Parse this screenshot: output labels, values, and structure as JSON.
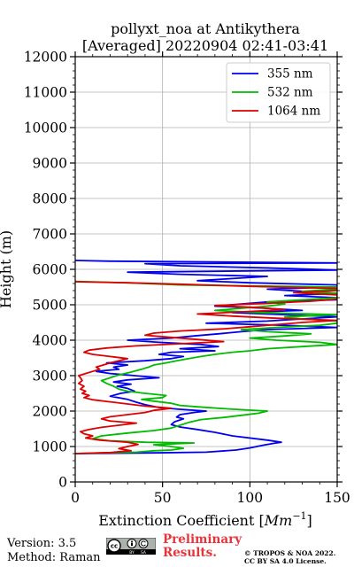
{
  "chart_data": {
    "type": "line",
    "title": "pollyxt_noa at Antikythera",
    "subtitle": "[Averaged] 20220904 02:41-03:41",
    "xlabel": "Extinction Coefficient",
    "xlabel_unit": "Mm",
    "xlabel_unit_exp": "−1",
    "ylabel": "Height (m)",
    "xlim": [
      0,
      150
    ],
    "ylim": [
      0,
      12000
    ],
    "xticks": [
      0,
      50,
      100,
      150
    ],
    "yticks": [
      0,
      1000,
      2000,
      3000,
      4000,
      5000,
      6000,
      7000,
      8000,
      9000,
      10000,
      11000,
      12000
    ],
    "grid": true,
    "legend_position": "top-right",
    "series": [
      {
        "name": "355 nm",
        "color": "#0000ee",
        "points": [
          [
            0,
            800
          ],
          [
            45,
            820
          ],
          [
            75,
            840
          ],
          [
            92,
            900
          ],
          [
            100,
            960
          ],
          [
            108,
            1040
          ],
          [
            115,
            1100
          ],
          [
            118,
            1120
          ],
          [
            110,
            1180
          ],
          [
            90,
            1300
          ],
          [
            80,
            1400
          ],
          [
            70,
            1480
          ],
          [
            60,
            1550
          ],
          [
            55,
            1620
          ],
          [
            57,
            1700
          ],
          [
            62,
            1780
          ],
          [
            58,
            1830
          ],
          [
            60,
            1900
          ],
          [
            68,
            1960
          ],
          [
            75,
            2000
          ],
          [
            60,
            2050
          ],
          [
            48,
            2100
          ],
          [
            40,
            2180
          ],
          [
            35,
            2250
          ],
          [
            30,
            2330
          ],
          [
            20,
            2420
          ],
          [
            26,
            2500
          ],
          [
            34,
            2560
          ],
          [
            30,
            2640
          ],
          [
            24,
            2700
          ],
          [
            32,
            2760
          ],
          [
            22,
            2820
          ],
          [
            30,
            2880
          ],
          [
            48,
            2940
          ],
          [
            34,
            3000
          ],
          [
            20,
            3060
          ],
          [
            12,
            3120
          ],
          [
            25,
            3180
          ],
          [
            22,
            3240
          ],
          [
            30,
            3300
          ],
          [
            18,
            3360
          ],
          [
            40,
            3420
          ],
          [
            55,
            3480
          ],
          [
            62,
            3540
          ],
          [
            48,
            3600
          ],
          [
            55,
            3660
          ],
          [
            80,
            3700
          ],
          [
            60,
            3760
          ],
          [
            82,
            3820
          ],
          [
            72,
            3880
          ],
          [
            48,
            3940
          ],
          [
            30,
            4000
          ],
          [
            55,
            4060
          ],
          [
            68,
            4120
          ],
          [
            82,
            4180
          ],
          [
            95,
            4240
          ],
          [
            110,
            4300
          ],
          [
            150,
            4360
          ],
          [
            120,
            4420
          ],
          [
            75,
            4480
          ],
          [
            110,
            4540
          ],
          [
            130,
            4600
          ],
          [
            150,
            4660
          ],
          [
            120,
            4720
          ],
          [
            90,
            4780
          ],
          [
            130,
            4840
          ],
          [
            110,
            4900
          ],
          [
            80,
            4960
          ],
          [
            95,
            5020
          ],
          [
            110,
            5080
          ],
          [
            150,
            5140
          ],
          [
            150,
            5200
          ],
          [
            120,
            5260
          ],
          [
            150,
            5320
          ],
          [
            130,
            5380
          ],
          [
            110,
            5440
          ],
          [
            150,
            5500
          ],
          [
            150,
            5560
          ],
          [
            100,
            5620
          ],
          [
            70,
            5680
          ],
          [
            90,
            5740
          ],
          [
            110,
            5800
          ],
          [
            60,
            5860
          ],
          [
            30,
            5920
          ],
          [
            150,
            5980
          ],
          [
            110,
            6040
          ],
          [
            60,
            6100
          ],
          [
            40,
            6160
          ],
          [
            150,
            6180
          ],
          [
            20,
            6230
          ],
          [
            0,
            6250
          ]
        ]
      },
      {
        "name": "532 nm",
        "color": "#00bb00",
        "points": [
          [
            0,
            800
          ],
          [
            15,
            820
          ],
          [
            35,
            840
          ],
          [
            45,
            880
          ],
          [
            55,
            900
          ],
          [
            62,
            950
          ],
          [
            55,
            1000
          ],
          [
            45,
            1050
          ],
          [
            58,
            1080
          ],
          [
            68,
            1100
          ],
          [
            40,
            1120
          ],
          [
            20,
            1160
          ],
          [
            10,
            1220
          ],
          [
            15,
            1300
          ],
          [
            30,
            1380
          ],
          [
            45,
            1450
          ],
          [
            55,
            1520
          ],
          [
            60,
            1600
          ],
          [
            65,
            1680
          ],
          [
            72,
            1760
          ],
          [
            85,
            1820
          ],
          [
            95,
            1880
          ],
          [
            105,
            1940
          ],
          [
            110,
            2000
          ],
          [
            88,
            2060
          ],
          [
            70,
            2120
          ],
          [
            60,
            2160
          ],
          [
            55,
            2220
          ],
          [
            45,
            2280
          ],
          [
            38,
            2330
          ],
          [
            50,
            2380
          ],
          [
            52,
            2440
          ],
          [
            40,
            2500
          ],
          [
            30,
            2560
          ],
          [
            25,
            2620
          ],
          [
            22,
            2700
          ],
          [
            18,
            2780
          ],
          [
            15,
            2860
          ],
          [
            20,
            2940
          ],
          [
            25,
            3020
          ],
          [
            32,
            3100
          ],
          [
            38,
            3180
          ],
          [
            42,
            3240
          ],
          [
            45,
            3300
          ],
          [
            52,
            3360
          ],
          [
            58,
            3420
          ],
          [
            65,
            3480
          ],
          [
            72,
            3540
          ],
          [
            80,
            3600
          ],
          [
            90,
            3660
          ],
          [
            100,
            3700
          ],
          [
            110,
            3760
          ],
          [
            130,
            3820
          ],
          [
            150,
            3880
          ],
          [
            140,
            3940
          ],
          [
            115,
            4000
          ],
          [
            100,
            4060
          ],
          [
            120,
            4120
          ],
          [
            135,
            4180
          ],
          [
            110,
            4240
          ],
          [
            95,
            4300
          ],
          [
            115,
            4360
          ],
          [
            140,
            4420
          ],
          [
            150,
            4480
          ],
          [
            150,
            4540
          ],
          [
            130,
            4600
          ],
          [
            120,
            4660
          ],
          [
            150,
            4720
          ],
          [
            105,
            4780
          ],
          [
            80,
            4840
          ],
          [
            95,
            4900
          ],
          [
            110,
            4960
          ],
          [
            120,
            5020
          ],
          [
            110,
            5080
          ],
          [
            130,
            5140
          ],
          [
            150,
            5200
          ],
          [
            150,
            5260
          ],
          [
            150,
            5320
          ],
          [
            130,
            5380
          ],
          [
            150,
            5440
          ],
          [
            150,
            5500
          ],
          [
            60,
            5560
          ],
          [
            30,
            5620
          ],
          [
            0,
            5660
          ]
        ]
      },
      {
        "name": "1064 nm",
        "color": "#dd0000",
        "points": [
          [
            0,
            800
          ],
          [
            20,
            830
          ],
          [
            32,
            880
          ],
          [
            25,
            940
          ],
          [
            30,
            1000
          ],
          [
            36,
            1060
          ],
          [
            30,
            1120
          ],
          [
            14,
            1180
          ],
          [
            6,
            1240
          ],
          [
            10,
            1300
          ],
          [
            5,
            1360
          ],
          [
            3,
            1420
          ],
          [
            8,
            1480
          ],
          [
            15,
            1540
          ],
          [
            25,
            1600
          ],
          [
            35,
            1660
          ],
          [
            20,
            1720
          ],
          [
            15,
            1780
          ],
          [
            20,
            1840
          ],
          [
            30,
            1900
          ],
          [
            40,
            1960
          ],
          [
            45,
            2020
          ],
          [
            55,
            2080
          ],
          [
            40,
            2140
          ],
          [
            30,
            2200
          ],
          [
            20,
            2260
          ],
          [
            10,
            2320
          ],
          [
            5,
            2380
          ],
          [
            8,
            2440
          ],
          [
            4,
            2500
          ],
          [
            6,
            2560
          ],
          [
            3,
            2620
          ],
          [
            5,
            2700
          ],
          [
            2,
            2780
          ],
          [
            4,
            2860
          ],
          [
            3,
            2940
          ],
          [
            2,
            3000
          ],
          [
            6,
            3060
          ],
          [
            10,
            3120
          ],
          [
            14,
            3180
          ],
          [
            12,
            3240
          ],
          [
            16,
            3300
          ],
          [
            20,
            3360
          ],
          [
            25,
            3420
          ],
          [
            30,
            3480
          ],
          [
            20,
            3540
          ],
          [
            10,
            3600
          ],
          [
            5,
            3660
          ],
          [
            8,
            3720
          ],
          [
            18,
            3780
          ],
          [
            35,
            3840
          ],
          [
            60,
            3900
          ],
          [
            85,
            3960
          ],
          [
            70,
            4020
          ],
          [
            55,
            4080
          ],
          [
            40,
            4140
          ],
          [
            45,
            4200
          ],
          [
            60,
            4260
          ],
          [
            85,
            4320
          ],
          [
            100,
            4380
          ],
          [
            115,
            4440
          ],
          [
            130,
            4500
          ],
          [
            150,
            4560
          ],
          [
            115,
            4620
          ],
          [
            90,
            4680
          ],
          [
            70,
            4740
          ],
          [
            95,
            4800
          ],
          [
            120,
            4860
          ],
          [
            105,
            4920
          ],
          [
            80,
            4980
          ],
          [
            110,
            5040
          ],
          [
            135,
            5100
          ],
          [
            150,
            5160
          ],
          [
            150,
            5220
          ],
          [
            150,
            5280
          ],
          [
            125,
            5340
          ],
          [
            150,
            5400
          ],
          [
            150,
            5460
          ],
          [
            100,
            5520
          ],
          [
            60,
            5580
          ],
          [
            30,
            5620
          ],
          [
            0,
            5650
          ]
        ]
      }
    ]
  },
  "footer": {
    "version_label": "Version: 3.5",
    "method_label": "Method: Raman",
    "prelim_line1": "Preliminary",
    "prelim_line2": "Results.",
    "copyright_line1": "© TROPOS & NOA 2022.",
    "copyright_line2": "CC BY SA 4.0 License.",
    "cc_badge": {
      "labels": [
        "BY",
        "SA"
      ],
      "icon": "cc-by-sa-icon"
    }
  }
}
